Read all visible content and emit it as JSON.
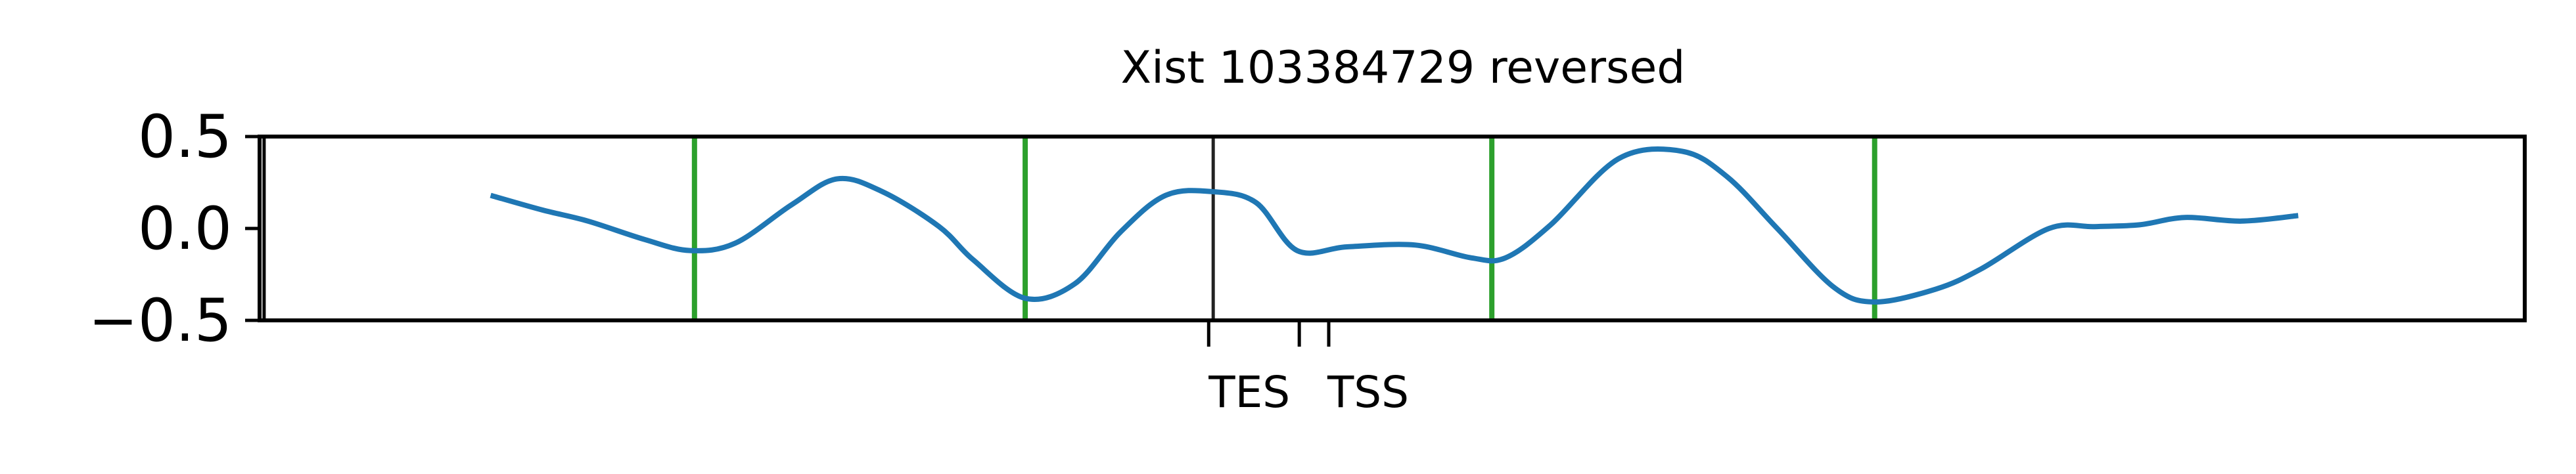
{
  "chart_data": {
    "type": "line",
    "title": "Xist 103384729 reversed",
    "xlabel": "",
    "ylabel": "",
    "ylim": [
      -0.5,
      0.5
    ],
    "y_ticks": [
      0.5,
      0.0,
      -0.5
    ],
    "y_tick_labels": [
      "0.5",
      "0.0",
      "−0.5"
    ],
    "x_ticks": [
      {
        "position": 0.419,
        "label": "TES"
      },
      {
        "position": 0.459,
        "label": ""
      },
      {
        "position": 0.472,
        "label": "TSS"
      }
    ],
    "colors": {
      "line": "#1f77b4",
      "marker_lines": "#2ca02c",
      "center_line": "#222222",
      "axes": "#000000"
    },
    "vertical_markers": [
      {
        "x": 0.002,
        "kind": "edge"
      },
      {
        "x": 0.192,
        "kind": "green"
      },
      {
        "x": 0.338,
        "kind": "green"
      },
      {
        "x": 0.421,
        "kind": "center"
      },
      {
        "x": 0.544,
        "kind": "green"
      },
      {
        "x": 0.713,
        "kind": "green"
      }
    ],
    "series": [
      {
        "points": [
          [
            0.102,
            0.18
          ],
          [
            0.125,
            0.1
          ],
          [
            0.145,
            0.04
          ],
          [
            0.17,
            -0.06
          ],
          [
            0.19,
            -0.12
          ],
          [
            0.21,
            -0.08
          ],
          [
            0.235,
            0.13
          ],
          [
            0.255,
            0.27
          ],
          [
            0.275,
            0.2
          ],
          [
            0.3,
            0.01
          ],
          [
            0.315,
            -0.17
          ],
          [
            0.338,
            -0.38
          ],
          [
            0.36,
            -0.3
          ],
          [
            0.38,
            -0.02
          ],
          [
            0.4,
            0.18
          ],
          [
            0.421,
            0.2
          ],
          [
            0.44,
            0.14
          ],
          [
            0.458,
            -0.12
          ],
          [
            0.48,
            -0.1
          ],
          [
            0.51,
            -0.09
          ],
          [
            0.535,
            -0.16
          ],
          [
            0.55,
            -0.16
          ],
          [
            0.57,
            0.02
          ],
          [
            0.6,
            0.38
          ],
          [
            0.628,
            0.42
          ],
          [
            0.648,
            0.28
          ],
          [
            0.67,
            0.0
          ],
          [
            0.695,
            -0.32
          ],
          [
            0.713,
            -0.4
          ],
          [
            0.74,
            -0.33
          ],
          [
            0.76,
            -0.22
          ],
          [
            0.79,
            0.0
          ],
          [
            0.81,
            0.01
          ],
          [
            0.83,
            0.02
          ],
          [
            0.85,
            0.06
          ],
          [
            0.875,
            0.04
          ],
          [
            0.9,
            0.07
          ]
        ]
      }
    ]
  }
}
